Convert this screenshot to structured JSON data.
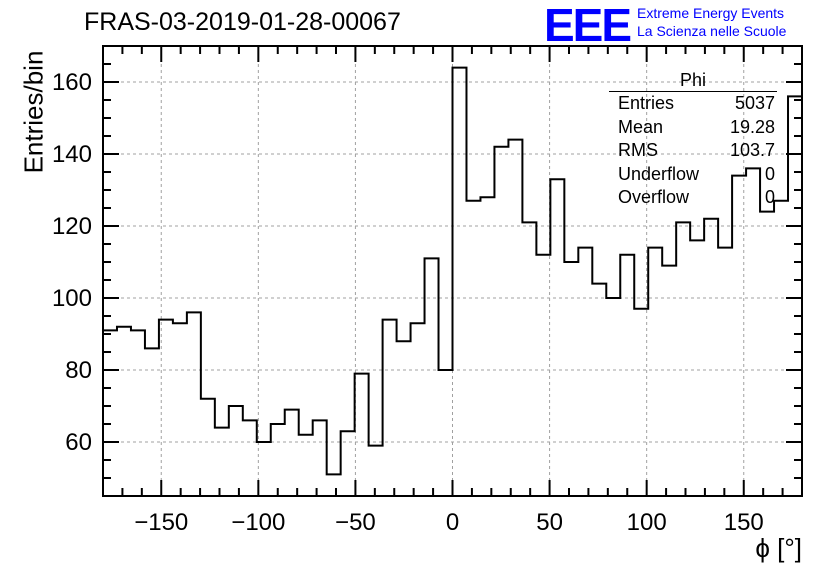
{
  "header": {
    "run_title": "FRAS-03-2019-01-28-00067",
    "logo_text": "EEE",
    "project_line1": "Extreme Energy Events",
    "project_line2": "La Scienza nelle Scuole",
    "brand_color": "#0000ff"
  },
  "stats": {
    "title": "Phi",
    "rows": [
      {
        "label": "Entries",
        "value": "5037"
      },
      {
        "label": "Mean",
        "value": "19.28"
      },
      {
        "label": "RMS",
        "value": "103.7"
      },
      {
        "label": "Underflow",
        "value": "0"
      },
      {
        "label": "Overflow",
        "value": "0"
      }
    ]
  },
  "chart_data": {
    "type": "histogram",
    "title": "FRAS-03-2019-01-28-00067",
    "xlabel": "ϕ [°]",
    "ylabel": "Entries/bin",
    "xlim": [
      -180,
      180
    ],
    "ylim": [
      45,
      170
    ],
    "bin_width": 7.2,
    "grid": true,
    "xticks": [
      -150,
      -100,
      -50,
      0,
      50,
      100,
      150
    ],
    "xtick_labels": [
      "−150",
      "−100",
      "−50",
      "0",
      "50",
      "100",
      "150"
    ],
    "yticks": [
      60,
      80,
      100,
      120,
      140,
      160
    ],
    "ytick_labels": [
      "60",
      "80",
      "100",
      "120",
      "140",
      "160"
    ],
    "values": [
      91,
      92,
      91,
      86,
      94,
      93,
      96,
      72,
      64,
      70,
      66,
      60,
      65,
      69,
      62,
      66,
      51,
      63,
      79,
      59,
      94,
      88,
      93,
      111,
      80,
      164,
      127,
      128,
      142,
      144,
      121,
      112,
      133,
      110,
      114,
      104,
      100,
      112,
      97,
      114,
      109,
      121,
      116,
      122,
      114,
      134,
      136,
      124,
      127,
      156
    ]
  }
}
